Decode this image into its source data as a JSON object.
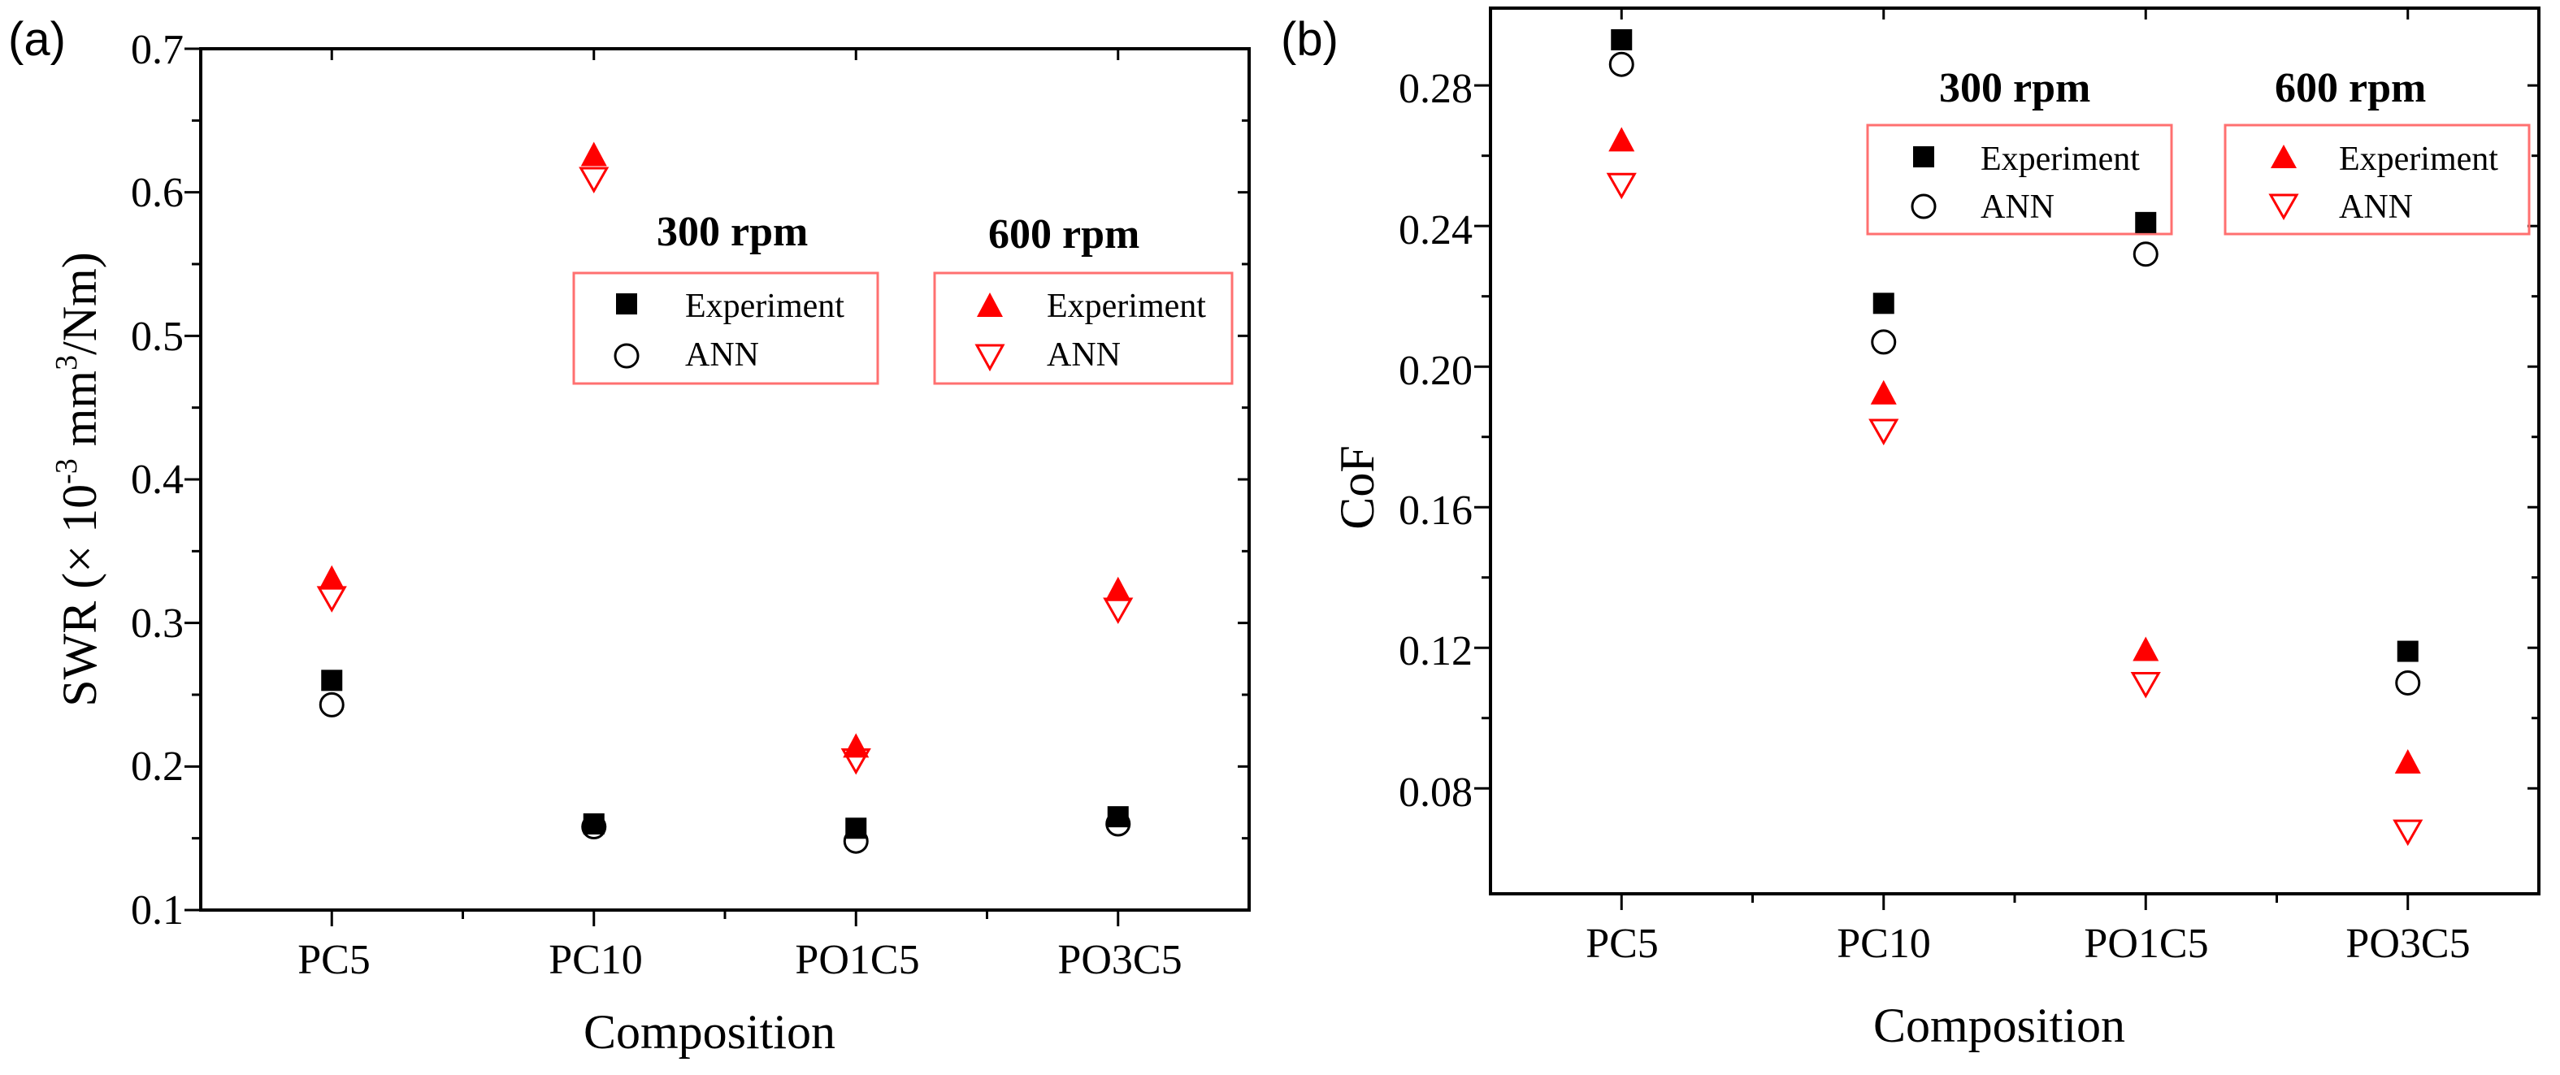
{
  "chart_data": [
    {
      "type": "scatter",
      "panel_label": "(a)",
      "xlabel": "Composition",
      "ylabel_main": "SWR (",
      "ylabel_times": "× 10",
      "ylabel_exp": "-3",
      "ylabel_unit": " mm",
      "ylabel_unit_exp": "3",
      "ylabel_tail": "/Nm)",
      "categories": [
        "PC5",
        "PC10",
        "PO1C5",
        "PO3C5"
      ],
      "ylim": [
        0.1,
        0.7
      ],
      "yticks": [
        0.1,
        0.2,
        0.3,
        0.4,
        0.5,
        0.6,
        0.7
      ],
      "ytick_labels": [
        "0.1",
        "0.2",
        "0.3",
        "0.4",
        "0.5",
        "0.6",
        "0.7"
      ],
      "legends": [
        {
          "title": "300 rpm",
          "entries": [
            "Experiment",
            "ANN"
          ]
        },
        {
          "title": "600 rpm",
          "entries": [
            "Experiment",
            "ANN"
          ]
        }
      ],
      "series": [
        {
          "name": "300 rpm Experiment",
          "marker": "square-filled",
          "color": "#000000",
          "values": [
            0.26,
            0.16,
            0.157,
            0.165
          ]
        },
        {
          "name": "300 rpm ANN",
          "marker": "circle-open",
          "color": "#000000",
          "values": [
            0.243,
            0.158,
            0.148,
            0.16
          ]
        },
        {
          "name": "600 rpm Experiment",
          "marker": "triangle-up-filled",
          "color": "#ff0000",
          "values": [
            0.33,
            0.625,
            0.213,
            0.322
          ]
        },
        {
          "name": "600 rpm ANN",
          "marker": "triangle-down-open",
          "color": "#ff0000",
          "values": [
            0.318,
            0.61,
            0.205,
            0.31
          ]
        }
      ]
    },
    {
      "type": "scatter",
      "panel_label": "(b)",
      "xlabel": "Composition",
      "ylabel": "CoF",
      "categories": [
        "PC5",
        "PC10",
        "PO1C5",
        "PO3C5"
      ],
      "ylim": [
        0.05,
        0.302
      ],
      "yticks": [
        0.08,
        0.12,
        0.16,
        0.2,
        0.24,
        0.28
      ],
      "ytick_labels": [
        "0.08",
        "0.12",
        "0.16",
        "0.20",
        "0.24",
        "0.28"
      ],
      "legends": [
        {
          "title": "300 rpm",
          "entries": [
            "Experiment",
            "ANN"
          ]
        },
        {
          "title": "600 rpm",
          "entries": [
            "Experiment",
            "ANN"
          ]
        }
      ],
      "series": [
        {
          "name": "300 rpm Experiment",
          "marker": "square-filled",
          "color": "#000000",
          "values": [
            0.293,
            0.218,
            0.241,
            0.119
          ]
        },
        {
          "name": "300 rpm ANN",
          "marker": "circle-open",
          "color": "#000000",
          "values": [
            0.286,
            0.207,
            0.232,
            0.11
          ]
        },
        {
          "name": "600 rpm Experiment",
          "marker": "triangle-up-filled",
          "color": "#ff0000",
          "values": [
            0.264,
            0.192,
            0.119,
            0.087
          ]
        },
        {
          "name": "600 rpm ANN",
          "marker": "triangle-down-open",
          "color": "#ff0000",
          "values": [
            0.252,
            0.182,
            0.11,
            0.068
          ]
        }
      ]
    }
  ]
}
